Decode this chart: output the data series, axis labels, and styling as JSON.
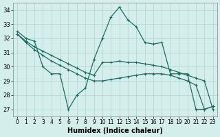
{
  "xlabel": "Humidex (Indice chaleur)",
  "bg_color": "#d4eeec",
  "grid_color": "#b8d8d5",
  "line_color": "#1e6b5e",
  "xlim": [
    -0.5,
    23.5
  ],
  "ylim": [
    26.5,
    34.5
  ],
  "yticks": [
    27,
    28,
    29,
    30,
    31,
    32,
    33,
    34
  ],
  "xticks": [
    0,
    1,
    2,
    3,
    4,
    5,
    6,
    7,
    8,
    9,
    10,
    11,
    12,
    13,
    14,
    15,
    16,
    17,
    18,
    19,
    20,
    21,
    22,
    23
  ],
  "s1_x": [
    0,
    1,
    2,
    3,
    4,
    5,
    6,
    7,
    8,
    9,
    10,
    11,
    12,
    13,
    14,
    15,
    16,
    17,
    18,
    19,
    20,
    21,
    22,
    23
  ],
  "s1_y": [
    32.5,
    32.0,
    31.8,
    30.0,
    29.5,
    29.5,
    27.0,
    28.0,
    28.5,
    30.5,
    32.0,
    33.5,
    34.2,
    33.3,
    32.8,
    31.7,
    31.6,
    31.7,
    29.5,
    29.5,
    29.5,
    27.0,
    27.0,
    27.2
  ],
  "s2_x": [
    0,
    1,
    2,
    3,
    4,
    5,
    6,
    7,
    8,
    9,
    10,
    11,
    12,
    13,
    14,
    15,
    16,
    17,
    18,
    19,
    20,
    21,
    22,
    23
  ],
  "s2_y": [
    32.3,
    31.8,
    31.4,
    31.1,
    30.8,
    30.5,
    30.2,
    29.9,
    29.6,
    29.4,
    30.3,
    30.3,
    30.4,
    30.3,
    30.3,
    30.2,
    30.1,
    30.0,
    29.8,
    29.6,
    29.4,
    29.2,
    29.0,
    27.0
  ],
  "s3_x": [
    0,
    1,
    2,
    3,
    4,
    5,
    6,
    7,
    8,
    9,
    10,
    11,
    12,
    13,
    14,
    15,
    16,
    17,
    18,
    19,
    20,
    21,
    22,
    23
  ],
  "s3_y": [
    32.3,
    31.7,
    31.2,
    30.8,
    30.4,
    30.1,
    29.8,
    29.5,
    29.2,
    29.0,
    29.0,
    29.1,
    29.2,
    29.3,
    29.4,
    29.5,
    29.5,
    29.5,
    29.4,
    29.2,
    29.0,
    28.7,
    27.0,
    27.2
  ]
}
